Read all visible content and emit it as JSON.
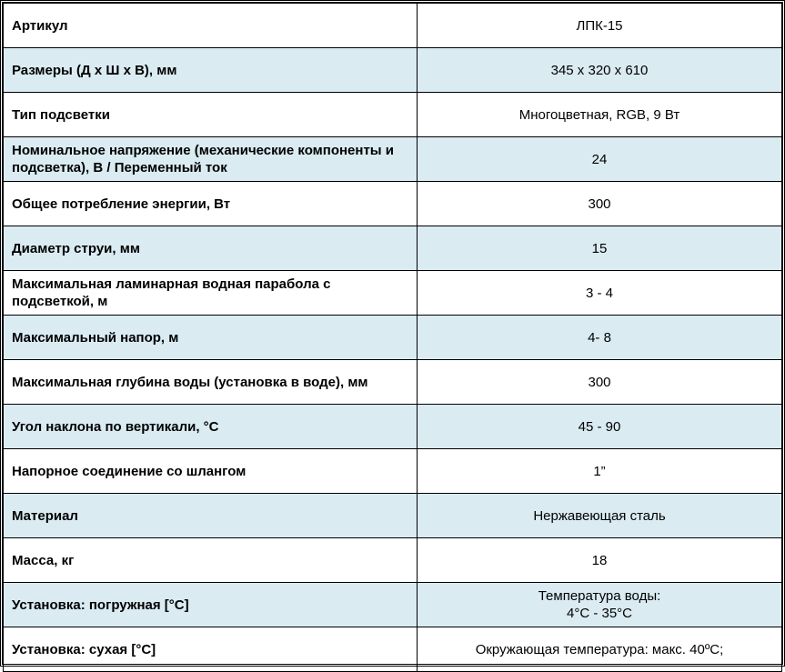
{
  "rows": [
    {
      "label": "Артикул",
      "value": "ЛПК-15"
    },
    {
      "label": "Размеры (Д х Ш х В), мм",
      "value": "345 x 320 x 610"
    },
    {
      "label": "Тип подсветки",
      "value": "Многоцветная, RGB, 9 Вт"
    },
    {
      "label": "Номинальное напряжение (механические компоненты и подсветка), В / Переменный ток",
      "value": "24"
    },
    {
      "label": "Общее потребление энергии, Вт",
      "value": "300"
    },
    {
      "label": "Диаметр струи, мм",
      "value": "15"
    },
    {
      "label": "Максимальная ламинарная водная парабола с подсветкой, м",
      "value": "3 - 4"
    },
    {
      "label": "Максимальный напор, м",
      "value": "4- 8"
    },
    {
      "label": "Максимальная глубина воды (установка в воде), мм",
      "value": "300"
    },
    {
      "label": "Угол наклона по вертикали, °С",
      "value": "45 - 90"
    },
    {
      "label": "Напорное соединение со шлангом",
      "value": "1”"
    },
    {
      "label": "Материал",
      "value": "Нержавеющая сталь"
    },
    {
      "label": "Масса, кг",
      "value": "18"
    },
    {
      "label": "Установка: погружная [°C]",
      "value": "Температура воды:\n4°C - 35°C"
    },
    {
      "label": "Установка: сухая [°C]",
      "value": "Окружающая температура: макс. 40ºC;"
    }
  ],
  "colors": {
    "row_alt": "#daebf2",
    "border": "#000000"
  }
}
